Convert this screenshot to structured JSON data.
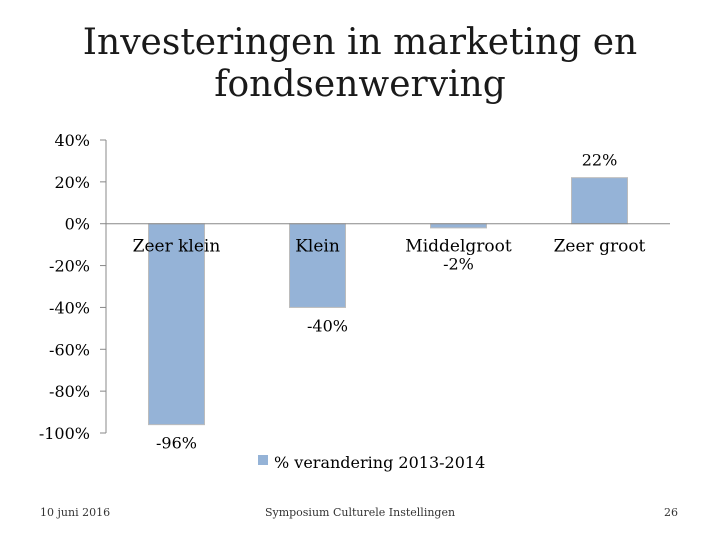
{
  "chart_data": {
    "type": "bar",
    "title_lines": [
      "Investeringen in marketing en",
      "fondsenwerving"
    ],
    "categories": [
      "Zeer klein",
      "Klein",
      "Middelgroot",
      "Zeer groot"
    ],
    "series": [
      {
        "name": "% verandering 2013-2014",
        "values": [
          -96,
          -40,
          -2,
          22
        ]
      }
    ],
    "data_labels": [
      "-96%",
      "-40%",
      "-2%",
      "22%"
    ],
    "y_ticks": [
      "40%",
      "20%",
      "0%",
      "-20%",
      "-40%",
      "-60%",
      "-80%",
      "-100%"
    ],
    "ylim": [
      -100,
      40
    ],
    "ystep": 20,
    "legend_position": "bottom",
    "grid": false,
    "colors": {
      "bar": "#95B3D7",
      "axis": "#888888"
    }
  },
  "footer": {
    "date": "10 juni 2016",
    "center": "Symposium Culturele Instellingen",
    "page": "26"
  }
}
